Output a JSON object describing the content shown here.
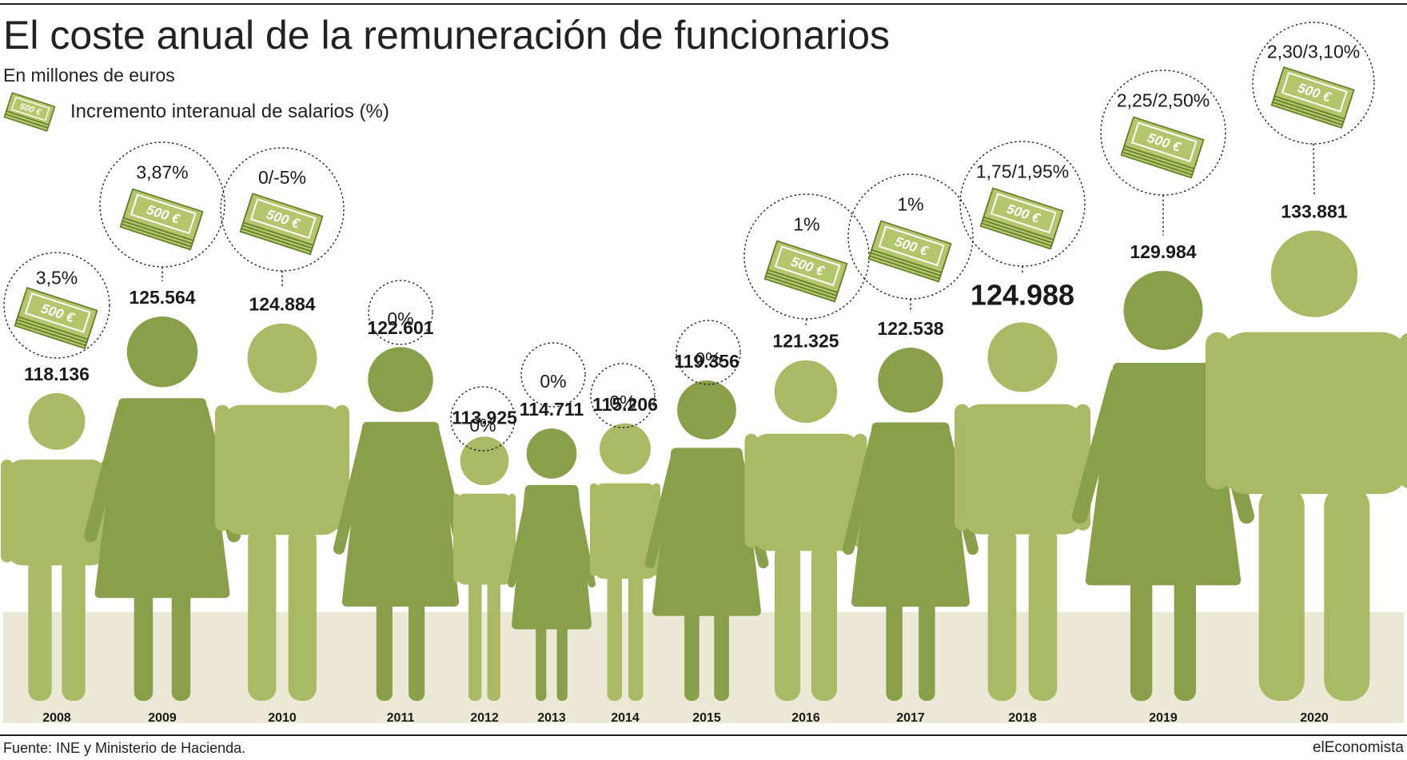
{
  "title": "El coste anual de la remuneración de funcionarios",
  "subtitle": "En millones de euros",
  "legend": {
    "label": "Incremento interanual de salarios (%)",
    "icon": "money-stack-icon",
    "note_label": "500 €"
  },
  "source": "Fuente: INE y Ministerio de Hacienda.",
  "brand": "elEconomista",
  "colors": {
    "light_green": "#aab963",
    "dark_green": "#8a9f4a",
    "ground": "#ebe8d6",
    "note_fill": "#b4c56b",
    "note_stroke": "#5f7a24"
  },
  "chart_data": {
    "type": "bar",
    "representation": "pictogram",
    "unit": "millones de euros",
    "series": [
      {
        "name": "Remuneración de funcionarios",
        "values": [
          118136,
          125564,
          124884,
          122601,
          113925,
          114711,
          115206,
          119356,
          121325,
          122538,
          124988,
          129984,
          133881
        ]
      },
      {
        "name": "Incremento interanual de salarios (%)",
        "labels": [
          "3,5%",
          "3,87%",
          "0/-5%",
          "0%",
          "0%",
          "0%",
          "0%",
          "0%",
          "1%",
          "1%",
          "1,75/1,95%",
          "2,25/2,50%",
          "2,30/3,10%"
        ]
      }
    ],
    "categories": [
      "2008",
      "2009",
      "2010",
      "2011",
      "2012",
      "2013",
      "2014",
      "2015",
      "2016",
      "2017",
      "2018",
      "2019",
      "2020"
    ],
    "value_labels": [
      "118.136",
      "125.564",
      "124.884",
      "122.601",
      "113.925",
      "114.711",
      "115.206",
      "119.356",
      "121.325",
      "122.538",
      "124.988",
      "129.984",
      "133.881"
    ],
    "figures": [
      "man",
      "woman",
      "man",
      "woman",
      "man",
      "woman",
      "man",
      "woman",
      "man",
      "woman",
      "man",
      "woman",
      "man"
    ],
    "shades": [
      "light",
      "dark",
      "light",
      "dark",
      "light",
      "dark",
      "light",
      "dark",
      "light",
      "dark",
      "light",
      "dark",
      "light"
    ],
    "note_shown": [
      true,
      true,
      true,
      false,
      false,
      false,
      false,
      false,
      true,
      true,
      true,
      true,
      true
    ],
    "highlight_index": 10
  }
}
